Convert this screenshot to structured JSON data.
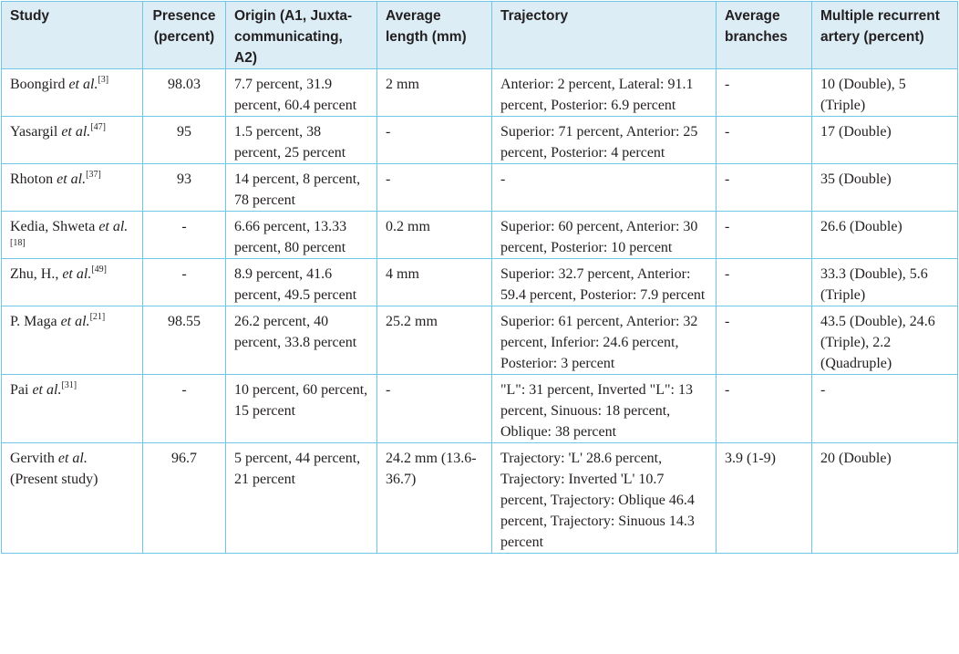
{
  "headers": {
    "study": "Study",
    "presence": "Presence (percent)",
    "origin": "Origin (A1, Juxta-communicating, A2)",
    "length": "Average length (mm)",
    "trajectory": "Trajectory",
    "branches": "Average branches",
    "multiple": "Multiple recurrent artery (percent)"
  },
  "rows": [
    {
      "study_pre": "Boongird ",
      "study_it": "et al.",
      "study_ref": "[3]",
      "study_post": "",
      "presence": "98.03",
      "origin": "7.7 percent, 31.9 percent, 60.4 percent",
      "length": "2 mm",
      "trajectory": "Anterior: 2 percent, Lateral: 91.1 percent, Posterior: 6.9 percent",
      "branches": "-",
      "multiple": "10 (Double), 5 (Triple)"
    },
    {
      "study_pre": "Yasargil ",
      "study_it": "et al.",
      "study_ref": "[47]",
      "study_post": "",
      "presence": "95",
      "origin": "1.5 percent, 38 percent, 25 percent",
      "length": "-",
      "trajectory": "Superior: 71 percent, Anterior: 25 percent, Posterior: 4 percent",
      "branches": "-",
      "multiple": "17 (Double)"
    },
    {
      "study_pre": "Rhoton ",
      "study_it": "et al.",
      "study_ref": "[37]",
      "study_post": "",
      "presence": "93",
      "origin": "14 percent, 8 percent, 78 percent",
      "length": "-",
      "trajectory": "-",
      "branches": "-",
      "multiple": "35 (Double)"
    },
    {
      "study_pre": "Kedia, Shweta ",
      "study_it": "et al.",
      "study_ref": "[18]",
      "study_post": "",
      "presence": "-",
      "origin": "6.66 percent, 13.33 percent, 80 percent",
      "length": "0.2 mm",
      "trajectory": "Superior: 60 percent, Anterior: 30 percent, Posterior: 10 percent",
      "branches": "-",
      "multiple": "26.6 (Double)"
    },
    {
      "study_pre": "Zhu, H., ",
      "study_it": "et al.",
      "study_ref": "[49]",
      "study_post": "",
      "presence": "-",
      "origin": "8.9 percent, 41.6 percent, 49.5 percent",
      "length": "4 mm",
      "trajectory": "Superior: 32.7 percent, Anterior: 59.4 percent, Posterior: 7.9 percent",
      "branches": "-",
      "multiple": "33.3 (Double), 5.6 (Triple)"
    },
    {
      "study_pre": "P. Maga ",
      "study_it": "et al.",
      "study_ref": "[21]",
      "study_post": "",
      "presence": "98.55",
      "origin": "26.2 percent, 40 percent, 33.8 percent",
      "length": "25.2 mm",
      "trajectory": "Superior: 61 percent, Anterior: 32 percent, Inferior: 24.6 percent, Posterior: 3 percent",
      "branches": "-",
      "multiple": "43.5 (Double), 24.6 (Triple), 2.2 (Quadruple)"
    },
    {
      "study_pre": "Pai ",
      "study_it": "et al.",
      "study_ref": "[31]",
      "study_post": "",
      "presence": "-",
      "origin": "10 percent, 60 percent, 15 percent",
      "length": "-",
      "trajectory": "\"L\": 31 percent, Inverted \"L\": 13 percent, Sinuous: 18 percent, Oblique: 38 percent",
      "branches": "-",
      "multiple": "-"
    },
    {
      "study_pre": "Gervith ",
      "study_it": "et al.",
      "study_ref": "",
      "study_post": " (Present study)",
      "presence": "96.7",
      "origin": "5 percent, 44 percent, 21 percent",
      "length": "24.2 mm (13.6-36.7)",
      "trajectory": "Trajectory: 'L' 28.6 percent, Trajectory: Inverted 'L' 10.7 percent, Trajectory: Oblique 46.4 percent, Trajectory: Sinuous 14.3 percent",
      "branches": "3.9 (1-9)",
      "multiple": "20 (Double)"
    }
  ]
}
